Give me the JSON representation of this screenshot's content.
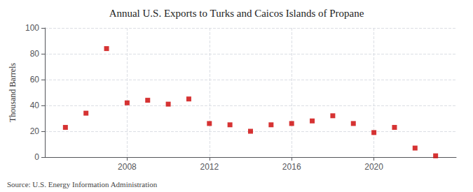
{
  "chart_data": {
    "type": "scatter",
    "title": "Annual U.S. Exports to Turks and Caicos Islands of Propane",
    "ylabel": "Thousand Barrels",
    "annotation": "Source: U.S. Energy Information Administration",
    "x": [
      2005,
      2006,
      2007,
      2008,
      2009,
      2010,
      2011,
      2012,
      2013,
      2014,
      2015,
      2016,
      2017,
      2018,
      2019,
      2020,
      2021,
      2022,
      2023
    ],
    "values": [
      23,
      34,
      84,
      42,
      44,
      41,
      45,
      26,
      25,
      20,
      25,
      26,
      28,
      32,
      26,
      19,
      23,
      7,
      1
    ],
    "color": "#cc0000",
    "marker": "square",
    "xlim": [
      2004.0,
      2024.0
    ],
    "xticks": [
      2008,
      2012,
      2016,
      2020
    ],
    "ylim": [
      0,
      100
    ],
    "yticks": [
      0,
      20,
      40,
      60,
      80,
      100
    ],
    "grid": true
  }
}
